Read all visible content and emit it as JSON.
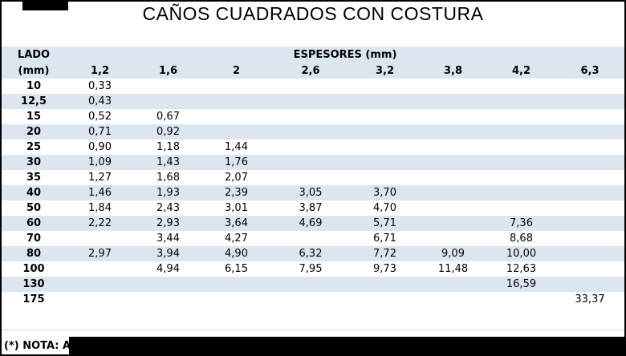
{
  "title": "CAÑOS CUADRADOS CON COSTURA",
  "colors": {
    "band": "#dce6f1",
    "redaction": "#000000",
    "text": "#000000"
  },
  "table": {
    "corner_header_line1": "LADO",
    "corner_header_line2": "(mm)",
    "group_header": "ESPESORES (mm)",
    "thickness_columns": [
      "1,2",
      "1,6",
      "2",
      "2,6",
      "3,2",
      "3,8",
      "4,2",
      "6,3"
    ],
    "rows": [
      {
        "lado": "10",
        "values": [
          "0,33",
          "",
          "",
          "",
          "",
          "",
          "",
          ""
        ]
      },
      {
        "lado": "12,5",
        "values": [
          "0,43",
          "",
          "",
          "",
          "",
          "",
          "",
          ""
        ]
      },
      {
        "lado": "15",
        "values": [
          "0,52",
          "0,67",
          "",
          "",
          "",
          "",
          "",
          ""
        ]
      },
      {
        "lado": "20",
        "values": [
          "0,71",
          "0,92",
          "",
          "",
          "",
          "",
          "",
          ""
        ]
      },
      {
        "lado": "25",
        "values": [
          "0,90",
          "1,18",
          "1,44",
          "",
          "",
          "",
          "",
          ""
        ]
      },
      {
        "lado": "30",
        "values": [
          "1,09",
          "1,43",
          "1,76",
          "",
          "",
          "",
          "",
          ""
        ]
      },
      {
        "lado": "35",
        "values": [
          "1,27",
          "1,68",
          "2,07",
          "",
          "",
          "",
          "",
          ""
        ]
      },
      {
        "lado": "40",
        "values": [
          "1,46",
          "1,93",
          "2,39",
          "3,05",
          "3,70",
          "",
          "",
          ""
        ]
      },
      {
        "lado": "50",
        "values": [
          "1,84",
          "2,43",
          "3,01",
          "3,87",
          "4,70",
          "",
          "",
          ""
        ]
      },
      {
        "lado": "60",
        "values": [
          "2,22",
          "2,93",
          "3,64",
          "4,69",
          "5,71",
          "",
          "7,36",
          ""
        ]
      },
      {
        "lado": "70",
        "values": [
          "",
          "3,44",
          "4,27",
          "",
          "6,71",
          "",
          "8,68",
          ""
        ]
      },
      {
        "lado": "80",
        "values": [
          "2,97",
          "3,94",
          "4,90",
          "6,32",
          "7,72",
          "9,09",
          "10,00",
          ""
        ]
      },
      {
        "lado": "100",
        "values": [
          "",
          "4,94",
          "6,15",
          "7,95",
          "9,73",
          "11,48",
          "12,63",
          ""
        ]
      },
      {
        "lado": "130",
        "values": [
          "",
          "",
          "",
          "",
          "",
          "",
          "16,59",
          ""
        ]
      },
      {
        "lado": "175",
        "values": [
          "",
          "",
          "",
          "",
          "",
          "",
          "",
          "33,37"
        ]
      }
    ]
  },
  "note": {
    "prefix": "(*) NOTA: A",
    "redacted": true
  }
}
